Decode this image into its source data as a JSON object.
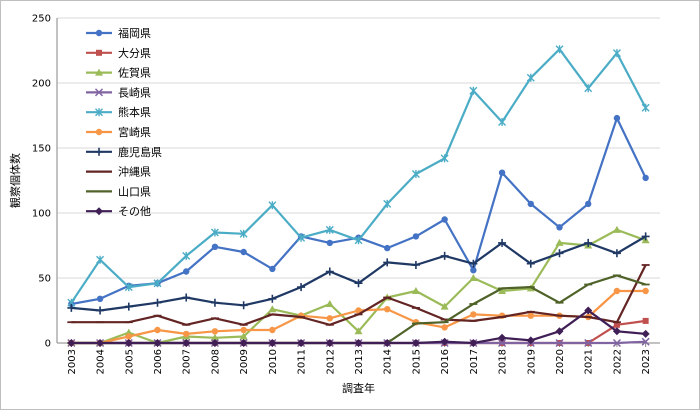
{
  "chart_data": {
    "type": "line",
    "title": "",
    "xlabel": "調査年",
    "ylabel": "観察個体数",
    "ylim": [
      0,
      250
    ],
    "yticks": [
      0,
      50,
      100,
      150,
      200,
      250
    ],
    "grid": true,
    "legend_position": "top-left",
    "x": [
      "2003",
      "2004",
      "2005",
      "2006",
      "2007",
      "2008",
      "2009",
      "2010",
      "2011",
      "2012",
      "2013",
      "2014",
      "2015",
      "2016",
      "2017",
      "2018",
      "2019",
      "2020",
      "2021",
      "2022",
      "2023"
    ],
    "series": [
      {
        "name": "福岡県",
        "color": "#4472C4",
        "marker": "circle",
        "values": [
          30,
          34,
          44,
          46,
          55,
          74,
          70,
          57,
          82,
          77,
          81,
          73,
          82,
          95,
          56,
          131,
          107,
          89,
          107,
          173,
          127
        ]
      },
      {
        "name": "大分県",
        "color": "#C0504D",
        "marker": "square",
        "values": [
          0,
          0,
          0,
          0,
          0,
          0,
          0,
          0,
          0,
          0,
          0,
          0,
          0,
          0,
          0,
          0,
          0,
          0,
          0,
          14,
          17
        ]
      },
      {
        "name": "佐賀県",
        "color": "#9BBB59",
        "marker": "triangle",
        "values": [
          0,
          0,
          8,
          0,
          5,
          4,
          5,
          26,
          21,
          30,
          9,
          35,
          40,
          28,
          50,
          40,
          42,
          77,
          75,
          87,
          79
        ]
      },
      {
        "name": "長崎県",
        "color": "#8064A2",
        "marker": "x",
        "values": [
          0,
          0,
          0,
          0,
          0,
          0,
          0,
          0,
          0,
          0,
          0,
          0,
          0,
          0,
          0,
          0,
          0,
          0,
          0,
          0,
          1
        ]
      },
      {
        "name": "熊本県",
        "color": "#4BACC6",
        "marker": "star",
        "values": [
          31,
          64,
          43,
          46,
          67,
          85,
          84,
          106,
          81,
          87,
          79,
          107,
          130,
          142,
          194,
          170,
          204,
          226,
          196,
          223,
          181
        ]
      },
      {
        "name": "宮崎県",
        "color": "#F79646",
        "marker": "circle",
        "values": [
          0,
          0,
          5,
          10,
          7,
          9,
          10,
          10,
          21,
          19,
          25,
          26,
          16,
          12,
          22,
          21,
          21,
          21,
          20,
          40,
          40
        ]
      },
      {
        "name": "鹿児島県",
        "color": "#1F3864",
        "marker": "plus",
        "values": [
          27,
          25,
          28,
          31,
          35,
          31,
          29,
          34,
          43,
          55,
          46,
          62,
          60,
          67,
          61,
          77,
          61,
          69,
          77,
          69,
          82
        ]
      },
      {
        "name": "沖縄県",
        "color": "#632523",
        "marker": "dash",
        "values": [
          16,
          16,
          16,
          21,
          14,
          19,
          14,
          22,
          20,
          14,
          22,
          35,
          27,
          18,
          17,
          20,
          24,
          21,
          20,
          16,
          60
        ]
      },
      {
        "name": "山口県",
        "color": "#4F6228",
        "marker": "dash",
        "values": [
          0,
          0,
          0,
          0,
          0,
          0,
          0,
          0,
          0,
          0,
          0,
          0,
          15,
          16,
          30,
          42,
          43,
          31,
          45,
          52,
          45
        ]
      },
      {
        "name": "その他",
        "color": "#3F1F55",
        "marker": "diamond",
        "values": [
          0,
          0,
          0,
          0,
          0,
          0,
          0,
          0,
          0,
          0,
          0,
          0,
          0,
          1,
          0,
          4,
          2,
          9,
          25,
          9,
          7
        ]
      }
    ]
  }
}
